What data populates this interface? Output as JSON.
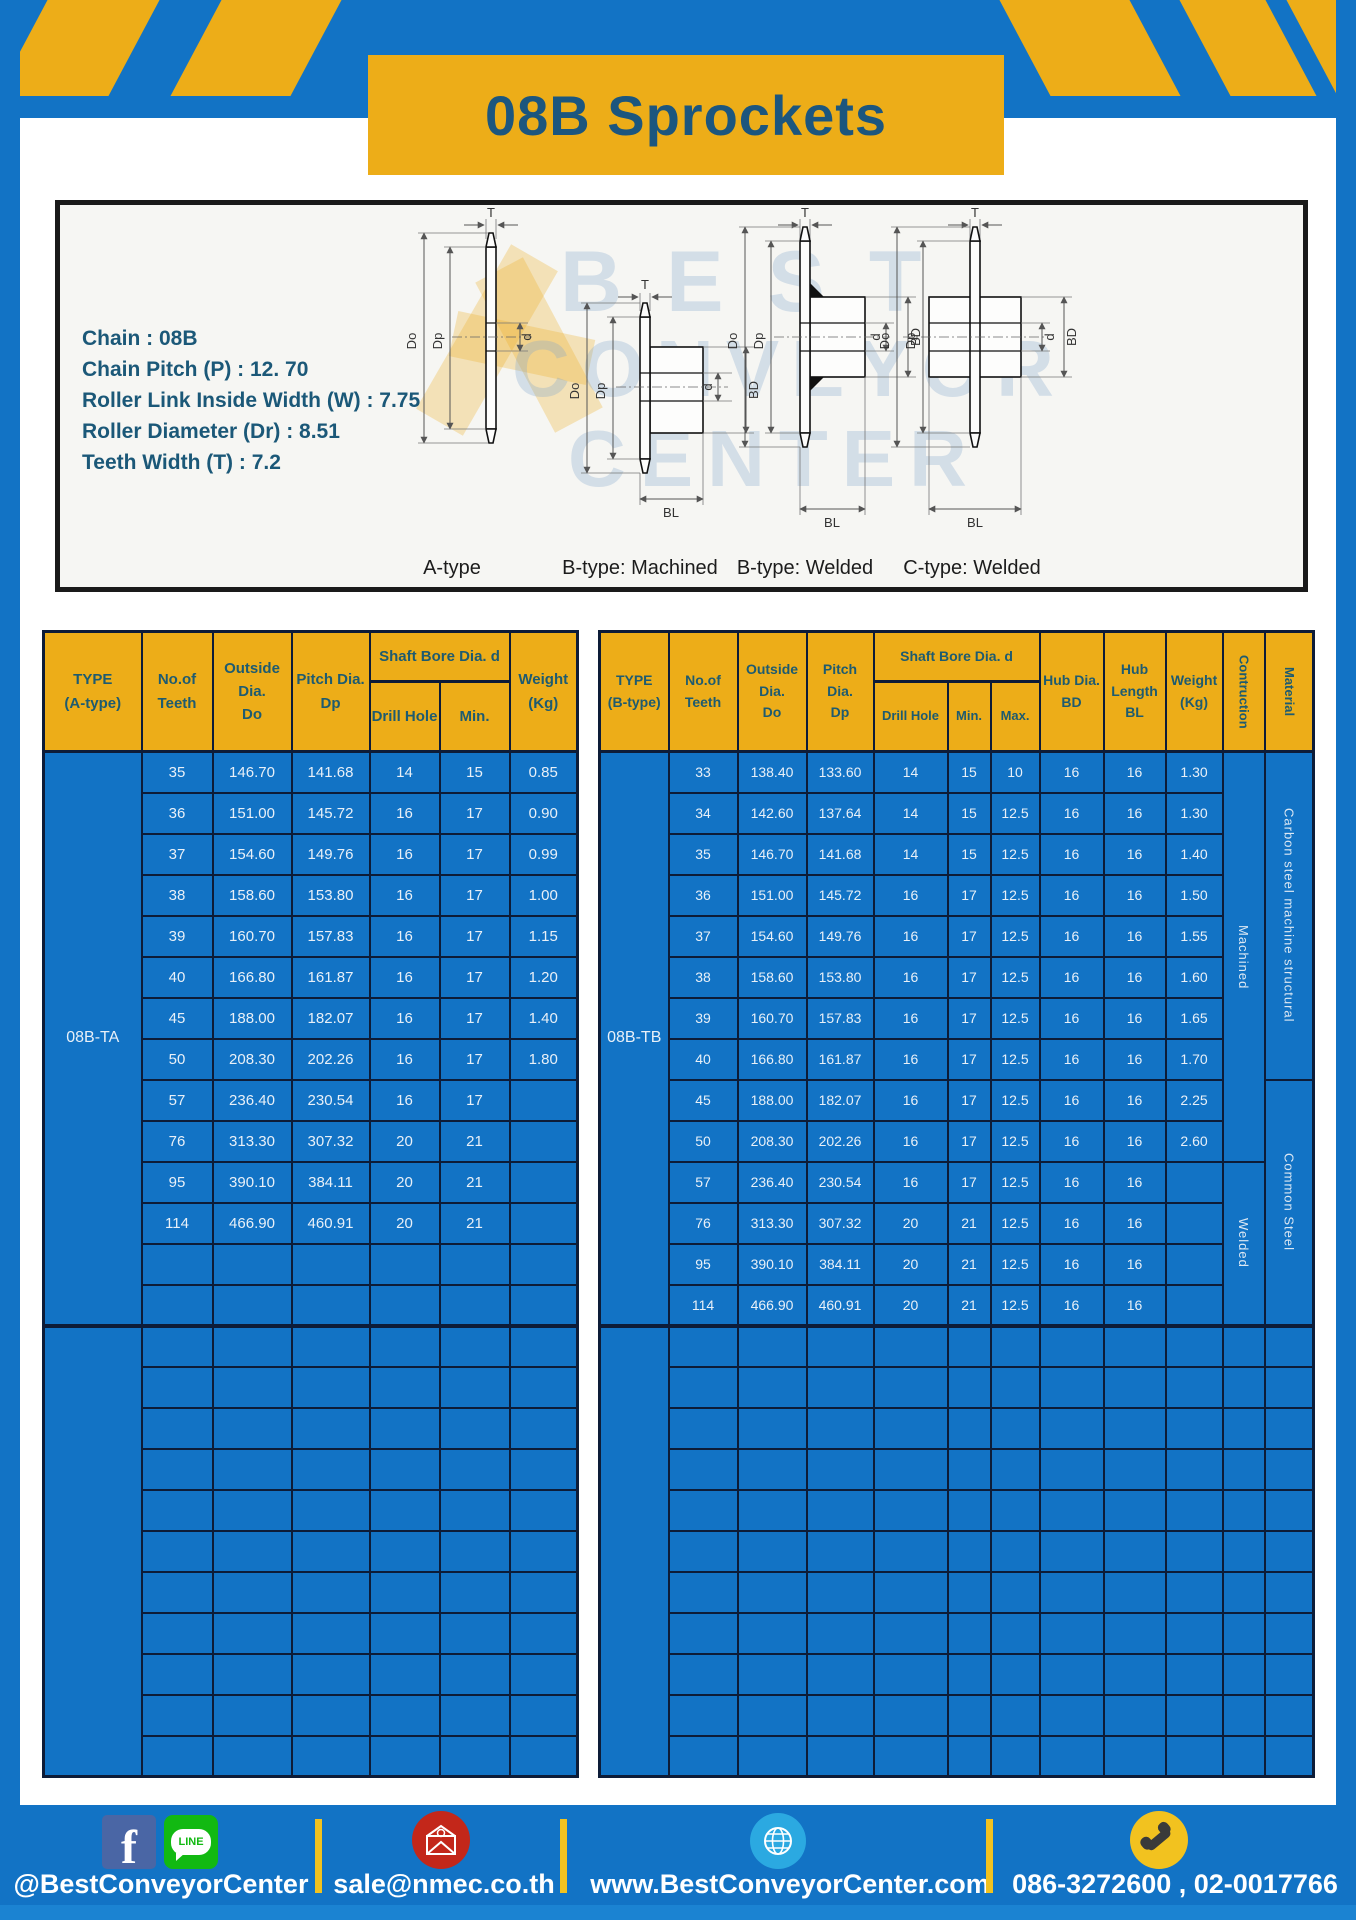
{
  "title": "08B Sprockets",
  "specs": {
    "lines": [
      "Chain : 08B",
      "Chain Pitch (P) : 12. 70",
      "Roller Link Inside Width (W) : 7.75",
      "Roller Diameter (Dr) : 8.51",
      "Teeth Width (T) : 7.2"
    ]
  },
  "diagram": {
    "type_labels": [
      "A-type",
      "B-type: Machined",
      "B-type: Welded",
      "C-type: Welded"
    ],
    "dims": {
      "t": "T",
      "outside": "Do",
      "pitch": "Dp",
      "bore": "d",
      "hub_dia": "BD",
      "hub_len": "BL"
    },
    "watermark": [
      "BEST",
      "CONVEYOR",
      "CENTER"
    ]
  },
  "table_a": {
    "headers": {
      "type": "TYPE\n(A-type)",
      "teeth": "No.of\nTeeth",
      "outside": "Outside\nDia.\nDo",
      "pitch": "Pitch Dia.\nDp",
      "shaft": "Shaft Bore Dia. d",
      "drill": "Drill Hole",
      "min": "Min.",
      "weight": "Weight\n(Kg)"
    },
    "type_value": "08B-TA",
    "rows": [
      [
        "35",
        "146.70",
        "141.68",
        "14",
        "15",
        "0.85"
      ],
      [
        "36",
        "151.00",
        "145.72",
        "16",
        "17",
        "0.90"
      ],
      [
        "37",
        "154.60",
        "149.76",
        "16",
        "17",
        "0.99"
      ],
      [
        "38",
        "158.60",
        "153.80",
        "16",
        "17",
        "1.00"
      ],
      [
        "39",
        "160.70",
        "157.83",
        "16",
        "17",
        "1.15"
      ],
      [
        "40",
        "166.80",
        "161.87",
        "16",
        "17",
        "1.20"
      ],
      [
        "45",
        "188.00",
        "182.07",
        "16",
        "17",
        "1.40"
      ],
      [
        "50",
        "208.30",
        "202.26",
        "16",
        "17",
        "1.80"
      ],
      [
        "57",
        "236.40",
        "230.54",
        "16",
        "17",
        ""
      ],
      [
        "76",
        "313.30",
        "307.32",
        "20",
        "21",
        ""
      ],
      [
        "95",
        "390.10",
        "384.11",
        "20",
        "21",
        ""
      ],
      [
        "114",
        "466.90",
        "460.91",
        "20",
        "21",
        ""
      ]
    ],
    "trailing_empty_rows": 2,
    "extra_block_rows": 11
  },
  "table_b": {
    "headers": {
      "type": "TYPE\n(B-type)",
      "teeth": "No.of\nTeeth",
      "outside": "Outside\nDia.\nDo",
      "pitch": "Pitch Dia.\nDp",
      "shaft": "Shaft Bore Dia. d",
      "drill": "Drill Hole",
      "min": "Min.",
      "max": "Max.",
      "hub_dia": "Hub Dia.\nBD",
      "hub_len": "Hub\nLength\nBL",
      "weight": "Weight\n(Kg)",
      "construction": "Contruction",
      "material": "Material"
    },
    "type_value": "08B-TB",
    "rows": [
      [
        "33",
        "138.40",
        "133.60",
        "14",
        "15",
        "10",
        "16",
        "16",
        "1.30"
      ],
      [
        "34",
        "142.60",
        "137.64",
        "14",
        "15",
        "12.5",
        "16",
        "16",
        "1.30"
      ],
      [
        "35",
        "146.70",
        "141.68",
        "14",
        "15",
        "12.5",
        "16",
        "16",
        "1.40"
      ],
      [
        "36",
        "151.00",
        "145.72",
        "16",
        "17",
        "12.5",
        "16",
        "16",
        "1.50"
      ],
      [
        "37",
        "154.60",
        "149.76",
        "16",
        "17",
        "12.5",
        "16",
        "16",
        "1.55"
      ],
      [
        "38",
        "158.60",
        "153.80",
        "16",
        "17",
        "12.5",
        "16",
        "16",
        "1.60"
      ],
      [
        "39",
        "160.70",
        "157.83",
        "16",
        "17",
        "12.5",
        "16",
        "16",
        "1.65"
      ],
      [
        "40",
        "166.80",
        "161.87",
        "16",
        "17",
        "12.5",
        "16",
        "16",
        "1.70"
      ],
      [
        "45",
        "188.00",
        "182.07",
        "16",
        "17",
        "12.5",
        "16",
        "16",
        "2.25"
      ],
      [
        "50",
        "208.30",
        "202.26",
        "16",
        "17",
        "12.5",
        "16",
        "16",
        "2.60"
      ],
      [
        "57",
        "236.40",
        "230.54",
        "16",
        "17",
        "12.5",
        "16",
        "16",
        ""
      ],
      [
        "76",
        "313.30",
        "307.32",
        "20",
        "21",
        "12.5",
        "16",
        "16",
        ""
      ],
      [
        "95",
        "390.10",
        "384.11",
        "20",
        "21",
        "12.5",
        "16",
        "16",
        ""
      ],
      [
        "114",
        "466.90",
        "460.91",
        "20",
        "21",
        "12.5",
        "16",
        "16",
        ""
      ]
    ],
    "construction_spans": [
      {
        "label": "Machined",
        "start": 0,
        "span": 10
      },
      {
        "label": "Welded",
        "start": 10,
        "span": 4
      }
    ],
    "material_spans": [
      {
        "label": "Carbon steel  machine structural",
        "start": 0,
        "span": 8
      },
      {
        "label": "Common Steel",
        "start": 8,
        "span": 6
      }
    ],
    "extra_block_rows": 11
  },
  "footer": {
    "facebook_f": "f",
    "line_icon_text": "LINE",
    "facebook_line_label": "@BestConveyorCenter",
    "email": "sale@nmec.co.th",
    "website": "www.BestConveyorCenter.com",
    "phones": "086-3272600 , 02-0017766"
  },
  "colors": {
    "accent_blue": "#1273C5",
    "accent_gold": "#EDAD18",
    "title_teal": "#1C567E",
    "header_text_teal": "#1E5B70",
    "table_border_navy": "#0D1C38",
    "email_red": "#C3271A",
    "line_green": "#12B912",
    "facebook_blue": "#4A66A5",
    "globe_blue": "#2BA9E1",
    "phone_yellow": "#F2C21F",
    "bottom_strip_blue": "#1B83D2"
  }
}
